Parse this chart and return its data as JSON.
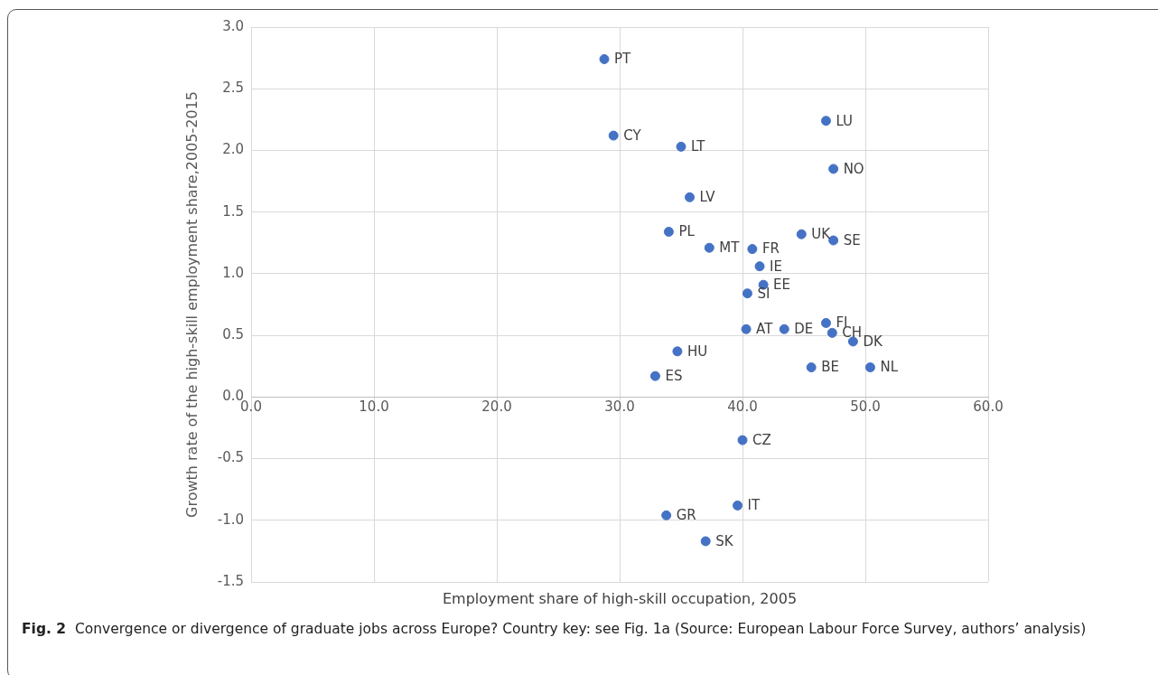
{
  "chart_data": {
    "type": "scatter",
    "xlabel": "Employment share of high-skill occupation, 2005",
    "ylabel": "Growth rate of the high-skill employment share,2005-2015",
    "x": [
      28.75,
      29.5,
      35.0,
      35.7,
      34.0,
      37.3,
      40.8,
      41.4,
      41.7,
      40.4,
      40.3,
      43.4,
      34.7,
      32.9,
      46.8,
      47.4,
      44.8,
      47.4,
      46.8,
      47.3,
      49.0,
      45.6,
      50.4,
      40.0,
      39.6,
      33.8,
      37.0
    ],
    "values": [
      2.74,
      2.12,
      2.03,
      1.62,
      1.34,
      1.21,
      1.2,
      1.06,
      0.91,
      0.84,
      0.55,
      0.55,
      0.37,
      0.17,
      2.24,
      1.85,
      1.32,
      1.27,
      0.6,
      0.52,
      0.45,
      0.24,
      0.24,
      -0.35,
      -0.88,
      -0.96,
      -1.17
    ],
    "color": "#4472c4",
    "marker": "circle",
    "grid": true,
    "xlim": [
      0,
      60
    ],
    "xticks": [
      {
        "value": 0,
        "label": "0.0"
      },
      {
        "value": 10,
        "label": "10.0"
      },
      {
        "value": 20,
        "label": "20.0"
      },
      {
        "value": 30,
        "label": "30.0"
      },
      {
        "value": 40,
        "label": "40.0"
      },
      {
        "value": 50,
        "label": "50.0"
      },
      {
        "value": 60,
        "label": "60.0"
      }
    ],
    "ylim": [
      -1.5,
      3
    ],
    "yticks": [
      {
        "value": -1.5,
        "label": "-1.5"
      },
      {
        "value": -1,
        "label": "-1.0"
      },
      {
        "value": -0.5,
        "label": "-0.5"
      },
      {
        "value": 0,
        "label": "0.0"
      },
      {
        "value": 0.5,
        "label": "0.5"
      },
      {
        "value": 1,
        "label": "1.0"
      },
      {
        "value": 1.5,
        "label": "1.5"
      },
      {
        "value": 2,
        "label": "2.0"
      },
      {
        "value": 2.5,
        "label": "2.5"
      },
      {
        "value": 3,
        "label": "3.0"
      }
    ],
    "annotations": [
      {
        "text": "PT",
        "x": 28.75,
        "y": 2.74
      },
      {
        "text": "CY",
        "x": 29.5,
        "y": 2.12
      },
      {
        "text": "LT",
        "x": 35.0,
        "y": 2.03
      },
      {
        "text": "LV",
        "x": 35.7,
        "y": 1.62
      },
      {
        "text": "PL",
        "x": 34.0,
        "y": 1.34
      },
      {
        "text": "MT",
        "x": 37.3,
        "y": 1.21
      },
      {
        "text": "FR",
        "x": 40.8,
        "y": 1.2
      },
      {
        "text": "IE",
        "x": 41.4,
        "y": 1.06
      },
      {
        "text": "EE",
        "x": 41.7,
        "y": 0.91
      },
      {
        "text": "SI",
        "x": 40.4,
        "y": 0.84
      },
      {
        "text": "AT",
        "x": 40.3,
        "y": 0.55
      },
      {
        "text": "DE",
        "x": 43.4,
        "y": 0.55
      },
      {
        "text": "HU",
        "x": 34.7,
        "y": 0.37
      },
      {
        "text": "ES",
        "x": 32.9,
        "y": 0.17
      },
      {
        "text": "LU",
        "x": 46.8,
        "y": 2.24
      },
      {
        "text": "NO",
        "x": 47.4,
        "y": 1.85
      },
      {
        "text": "UK",
        "x": 44.8,
        "y": 1.32
      },
      {
        "text": "SE",
        "x": 47.4,
        "y": 1.27
      },
      {
        "text": "FI",
        "x": 46.8,
        "y": 0.6
      },
      {
        "text": "CH",
        "x": 47.3,
        "y": 0.52
      },
      {
        "text": "DK",
        "x": 49.0,
        "y": 0.45
      },
      {
        "text": "BE",
        "x": 45.6,
        "y": 0.24
      },
      {
        "text": "NL",
        "x": 50.4,
        "y": 0.24
      },
      {
        "text": "CZ",
        "x": 40.0,
        "y": -0.35
      },
      {
        "text": "IT",
        "x": 39.6,
        "y": -0.88
      },
      {
        "text": "GR",
        "x": 33.8,
        "y": -0.96
      },
      {
        "text": "SK",
        "x": 37.0,
        "y": -1.17
      },
      "Fig. 2  Convergence or divergence of graduate jobs across Europe? Country key: see Fig. 1a (Source: European Labour Force Survey, authors’ analysis)"
    ]
  }
}
